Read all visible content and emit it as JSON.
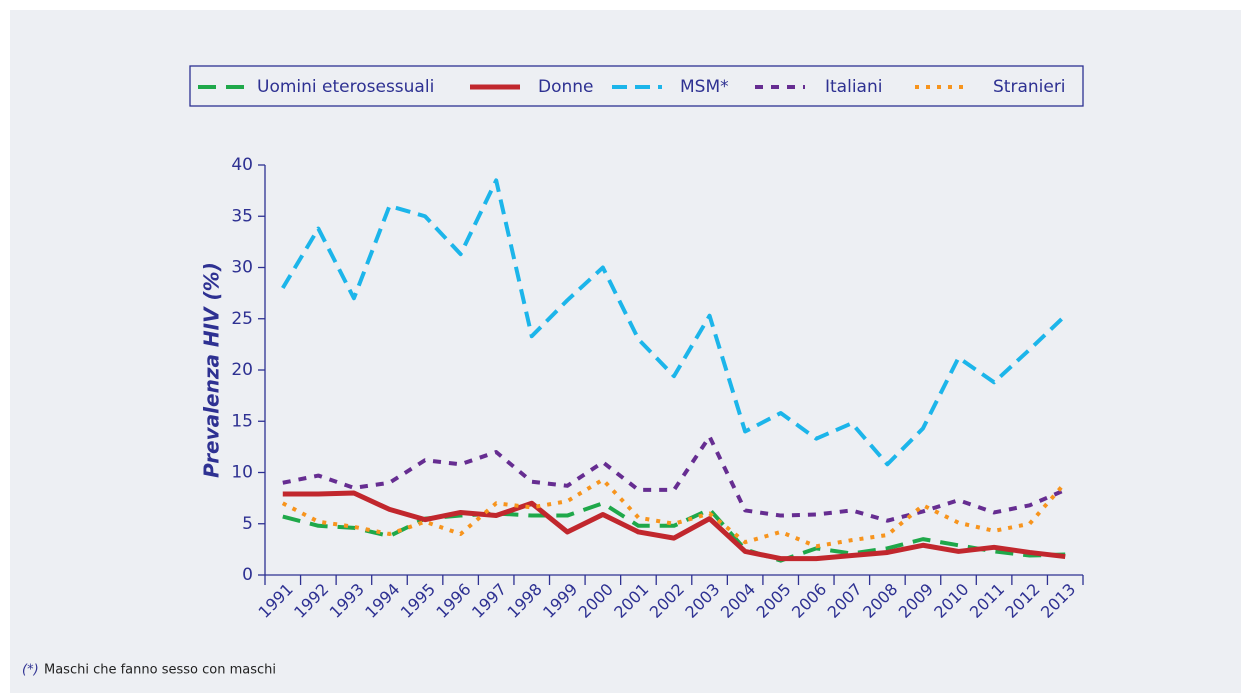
{
  "chart_data": {
    "type": "line",
    "y_label": "Prevalenza HIV (%)",
    "categories": [
      "1991",
      "1992",
      "1993",
      "1994",
      "1995",
      "1996",
      "1997",
      "1998",
      "1999",
      "2000",
      "2001",
      "2002",
      "2003",
      "2004",
      "2005",
      "2006",
      "2007",
      "2008",
      "2009",
      "2010",
      "2011",
      "2012",
      "2013"
    ],
    "series": [
      {
        "name": "Uomini eterosessuali",
        "color": "#1fa84a",
        "values": [
          5.7,
          4.8,
          4.6,
          3.8,
          5.5,
          5.8,
          6,
          5.8,
          5.8,
          7,
          4.8,
          4.8,
          6.4,
          2.5,
          1.4,
          2.6,
          2.1,
          2.6,
          3.5,
          2.9,
          2.3,
          1.9,
          2
        ]
      },
      {
        "name": "Donne",
        "color": "#c1272d",
        "values": [
          7.9,
          7.9,
          8,
          6.4,
          5.4,
          6.1,
          5.8,
          7,
          4.2,
          5.9,
          4.2,
          3.6,
          5.5,
          2.3,
          1.6,
          1.6,
          1.9,
          2.2,
          2.9,
          2.3,
          2.7,
          2.2,
          1.8
        ]
      },
      {
        "name": "MSM*",
        "color": "#1cb5ea",
        "values": [
          28,
          33.8,
          27,
          36,
          35,
          31.3,
          38.5,
          23.3,
          26.8,
          30,
          23,
          19.4,
          25.3,
          14,
          15.8,
          13.3,
          14.8,
          10.8,
          14.3,
          21.2,
          18.8,
          22,
          25.3
        ]
      },
      {
        "name": "Italiani",
        "color": "#662d91",
        "values": [
          9,
          9.7,
          8.5,
          9,
          11.2,
          10.8,
          12,
          9.1,
          8.7,
          11,
          8.3,
          8.3,
          13.5,
          6.3,
          5.8,
          5.9,
          6.3,
          5.3,
          6.2,
          7.3,
          6.1,
          6.8,
          8.3
        ]
      },
      {
        "name": "Stranieri",
        "color": "#f7941d",
        "values": [
          7,
          5.2,
          4.7,
          4,
          5.2,
          4,
          7,
          6.6,
          7.2,
          9.3,
          5.6,
          5,
          6,
          3.2,
          4.2,
          2.8,
          3.4,
          3.9,
          6.8,
          5.1,
          4.3,
          5,
          9
        ]
      }
    ],
    "ylim": [
      0,
      40
    ],
    "yticks": [
      0,
      5,
      10,
      15,
      20,
      25,
      30,
      35,
      40
    ]
  },
  "footnote": {
    "marker": "(*)",
    "text": "Maschi che fanno sesso con maschi"
  }
}
